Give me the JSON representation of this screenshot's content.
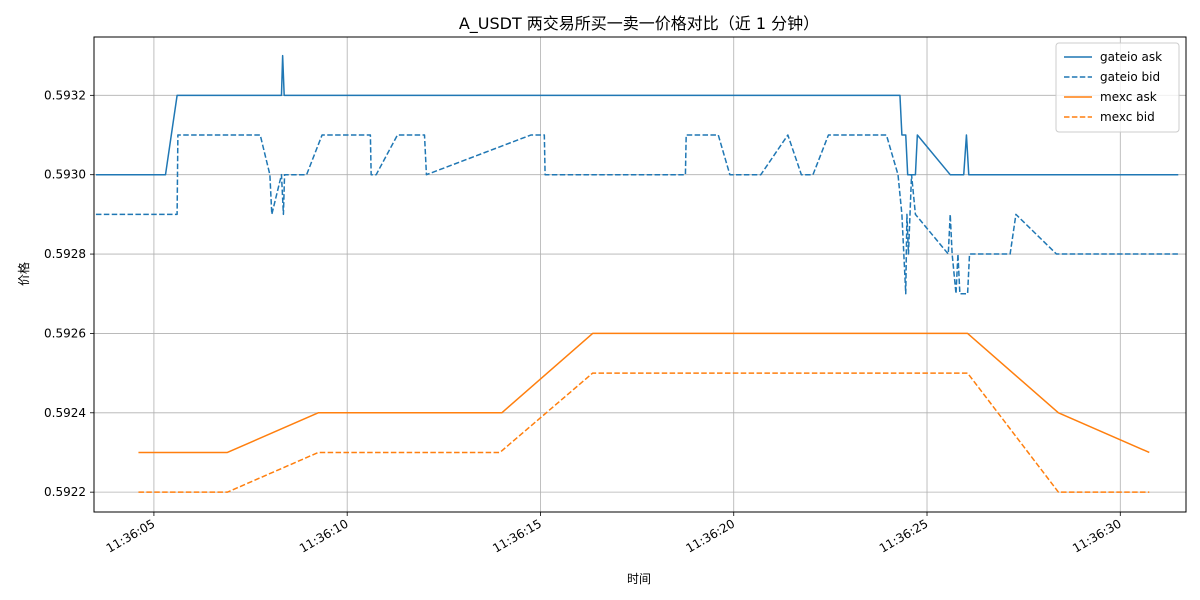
{
  "chart_data": {
    "type": "line",
    "title": "A_USDT 两交易所买一卖一价格对比（近 1 分钟）",
    "xlabel": "时间",
    "ylabel": "价格",
    "x_ticks": [
      "11:36:05",
      "11:36:10",
      "11:36:15",
      "11:36:20",
      "11:36:25",
      "11:36:30"
    ],
    "y_ticks": [
      "0.5922",
      "0.5924",
      "0.5926",
      "0.5928",
      "0.5930",
      "0.5932"
    ],
    "xlim": [
      3.45,
      31.7
    ],
    "ylim": [
      0.59215,
      0.593347
    ],
    "grid": true,
    "legend_position": "top-right",
    "colors": {
      "gateio": "#1f77b4",
      "mexc": "#ff7f0e"
    },
    "series": [
      {
        "name": "gateio ask",
        "color": "#1f77b4",
        "dash": "solid",
        "points": [
          [
            3.5,
            0.593
          ],
          [
            5.3,
            0.593
          ],
          [
            5.6,
            0.5932
          ],
          [
            8.3,
            0.5932
          ],
          [
            8.33,
            0.5933
          ],
          [
            8.37,
            0.5932
          ],
          [
            24.3,
            0.5932
          ],
          [
            24.35,
            0.5931
          ],
          [
            24.45,
            0.5931
          ],
          [
            24.5,
            0.593
          ],
          [
            24.7,
            0.593
          ],
          [
            24.75,
            0.5931
          ],
          [
            25.6,
            0.593
          ],
          [
            25.95,
            0.593
          ],
          [
            26.02,
            0.5931
          ],
          [
            26.08,
            0.593
          ],
          [
            31.5,
            0.593
          ]
        ]
      },
      {
        "name": "gateio bid",
        "color": "#1f77b4",
        "dash": "dashed",
        "points": [
          [
            3.5,
            0.5929
          ],
          [
            5.6,
            0.5929
          ],
          [
            5.62,
            0.5931
          ],
          [
            7.75,
            0.5931
          ],
          [
            8.0,
            0.593
          ],
          [
            8.05,
            0.5929
          ],
          [
            8.3,
            0.593
          ],
          [
            8.35,
            0.5929
          ],
          [
            8.38,
            0.593
          ],
          [
            8.95,
            0.593
          ],
          [
            9.35,
            0.5931
          ],
          [
            10.6,
            0.5931
          ],
          [
            10.62,
            0.593
          ],
          [
            10.75,
            0.593
          ],
          [
            11.3,
            0.5931
          ],
          [
            12.0,
            0.5931
          ],
          [
            12.05,
            0.593
          ],
          [
            14.75,
            0.5931
          ],
          [
            15.1,
            0.5931
          ],
          [
            15.12,
            0.593
          ],
          [
            18.75,
            0.593
          ],
          [
            18.77,
            0.5931
          ],
          [
            19.6,
            0.5931
          ],
          [
            19.9,
            0.593
          ],
          [
            20.7,
            0.593
          ],
          [
            21.4,
            0.5931
          ],
          [
            21.75,
            0.593
          ],
          [
            22.05,
            0.593
          ],
          [
            22.45,
            0.5931
          ],
          [
            23.95,
            0.5931
          ],
          [
            24.25,
            0.593
          ],
          [
            24.35,
            0.5929
          ],
          [
            24.45,
            0.5927
          ],
          [
            24.48,
            0.5929
          ],
          [
            24.52,
            0.5928
          ],
          [
            24.6,
            0.593
          ],
          [
            24.7,
            0.5929
          ],
          [
            25.55,
            0.5928
          ],
          [
            25.6,
            0.5929
          ],
          [
            25.65,
            0.5928
          ],
          [
            25.75,
            0.5927
          ],
          [
            25.8,
            0.5928
          ],
          [
            25.85,
            0.5927
          ],
          [
            26.05,
            0.5927
          ],
          [
            26.1,
            0.5928
          ],
          [
            27.15,
            0.5928
          ],
          [
            27.3,
            0.5929
          ],
          [
            28.35,
            0.5928
          ],
          [
            31.5,
            0.5928
          ]
        ]
      },
      {
        "name": "mexc ask",
        "color": "#ff7f0e",
        "dash": "solid",
        "points": [
          [
            4.6,
            0.5923
          ],
          [
            6.9,
            0.5923
          ],
          [
            9.25,
            0.5924
          ],
          [
            14.0,
            0.5924
          ],
          [
            16.35,
            0.5926
          ],
          [
            26.05,
            0.5926
          ],
          [
            28.4,
            0.5924
          ],
          [
            30.75,
            0.5923
          ]
        ]
      },
      {
        "name": "mexc bid",
        "color": "#ff7f0e",
        "dash": "dashed",
        "points": [
          [
            4.6,
            0.5922
          ],
          [
            6.9,
            0.5922
          ],
          [
            9.25,
            0.5923
          ],
          [
            13.95,
            0.5923
          ],
          [
            16.35,
            0.5925
          ],
          [
            26.05,
            0.5925
          ],
          [
            28.4,
            0.5922
          ],
          [
            30.75,
            0.5922
          ]
        ]
      }
    ]
  }
}
